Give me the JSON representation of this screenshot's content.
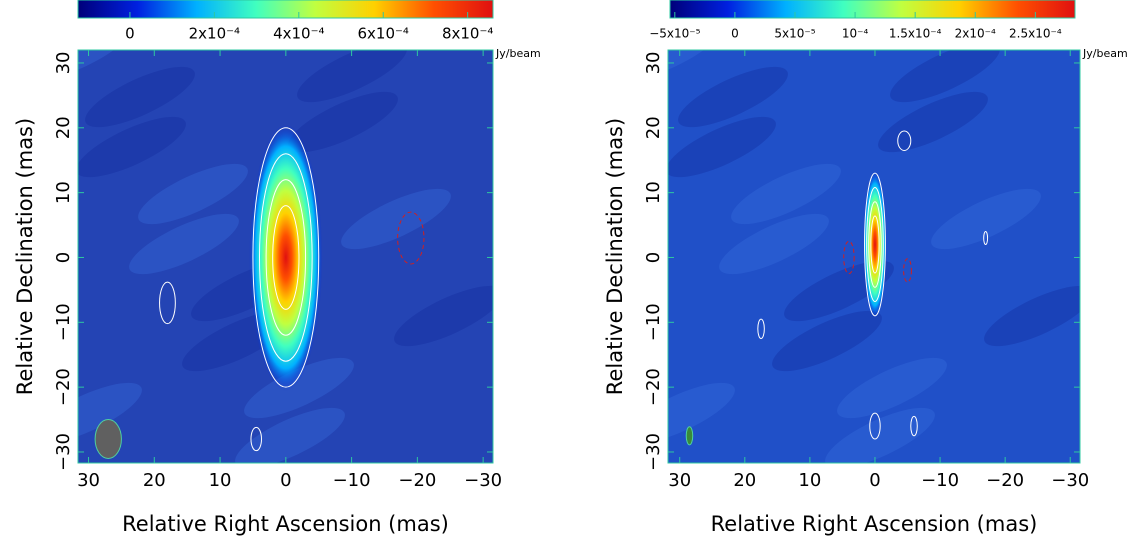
{
  "chart_data": [
    {
      "type": "image",
      "x_label": "Relative Right Ascension (mas)",
      "y_label": "Relative Declination (mas)",
      "xlim": [
        31.6,
        -31.5
      ],
      "ylim": [
        -31.7,
        32
      ],
      "xticks": [
        30,
        20,
        10,
        0,
        {
          "value": -10,
          "label": "−10"
        },
        {
          "value": -20,
          "label": "−20"
        },
        {
          "value": -30,
          "label": "−30"
        }
      ],
      "yticks": [
        {
          "value": -30,
          "label": "−30"
        },
        {
          "value": -20,
          "label": "−20"
        },
        {
          "value": -10,
          "label": "−10"
        },
        0,
        10,
        20,
        30
      ],
      "colorbar_label": "Jy/beam",
      "clim": [
        -0.000123,
        0.00086
      ],
      "cticks": [
        0,
        {
          "value": 0.0002,
          "label": "2x10⁻⁴"
        },
        {
          "value": 0.0004,
          "label": "4x10⁻⁴"
        },
        {
          "value": 0.0006,
          "label": "6x10⁻⁴"
        },
        {
          "value": 0.0008,
          "label": "8x10⁻⁴"
        }
      ],
      "colormap": [
        "#00007a",
        "#0020e0",
        "#00b0ff",
        "#40ffc0",
        "#c0ff40",
        "#ffd000",
        "#ff5000",
        "#e01010"
      ]
    },
    {
      "type": "image",
      "x_label": "Relative Right Ascension (mas)",
      "y_label": "Relative Declination (mas)",
      "xlim": [
        31.8,
        -31.5
      ],
      "ylim": [
        -31.7,
        32
      ],
      "xticks": [
        30,
        20,
        10,
        0,
        {
          "value": -10,
          "label": "−10"
        },
        {
          "value": -20,
          "label": "−20"
        },
        {
          "value": -30,
          "label": "−30"
        }
      ],
      "yticks": [
        {
          "value": -30,
          "label": "−30"
        },
        {
          "value": -20,
          "label": "−20"
        },
        {
          "value": -10,
          "label": "−10"
        },
        0,
        10,
        20,
        30
      ],
      "colorbar_label": "Jy/beam",
      "clim": [
        -5.4e-05,
        0.000283
      ],
      "cticks": [
        {
          "value": -5e-05,
          "label": "−5x10⁻⁵"
        },
        0,
        {
          "value": 5e-05,
          "label": "5x10⁻⁵"
        },
        {
          "value": 0.0001,
          "label": "10⁻⁴"
        },
        {
          "value": 0.00015,
          "label": "1.5x10⁻⁴"
        },
        {
          "value": 0.0002,
          "label": "2x10⁻⁴"
        },
        {
          "value": 0.00025,
          "label": "2.5x10⁻⁴"
        }
      ],
      "colormap": [
        "#00007a",
        "#0020e0",
        "#00b0ff",
        "#40ffc0",
        "#c0ff40",
        "#ffd000",
        "#ff5000",
        "#e01010"
      ]
    }
  ]
}
